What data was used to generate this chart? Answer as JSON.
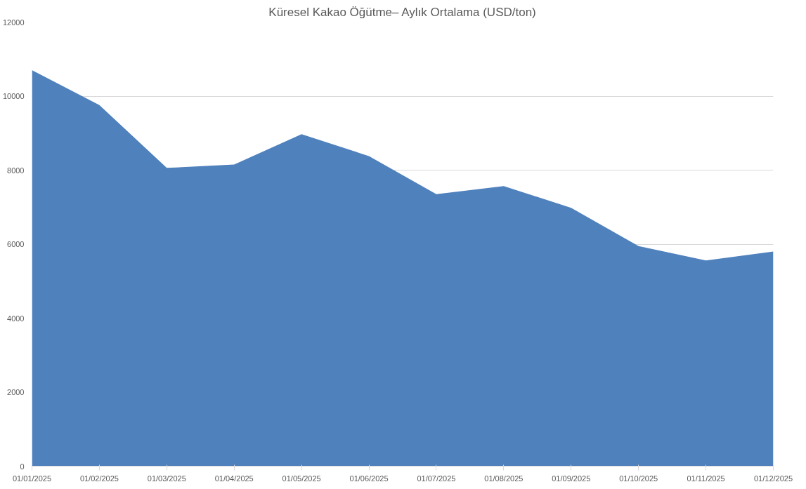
{
  "chart_data": {
    "type": "area",
    "title": "Küresel Kakao Öğütme– Aylık Ortalama (USD/ton)",
    "categories": [
      "01/01/2025",
      "01/02/2025",
      "01/03/2025",
      "01/04/2025",
      "01/05/2025",
      "01/06/2025",
      "01/07/2025",
      "01/08/2025",
      "01/09/2025",
      "01/10/2025",
      "01/11/2025",
      "01/12/2025"
    ],
    "series": [
      {
        "color": "#4f81bd",
        "values": [
          10700,
          9760,
          8060,
          8150,
          8970,
          8380,
          7350,
          7570,
          6980,
          5950,
          5560,
          5800
        ]
      }
    ],
    "ylim": [
      0,
      12000
    ],
    "yticks": [
      0,
      2000,
      4000,
      6000,
      8000,
      10000,
      12000
    ],
    "grid": "y"
  }
}
